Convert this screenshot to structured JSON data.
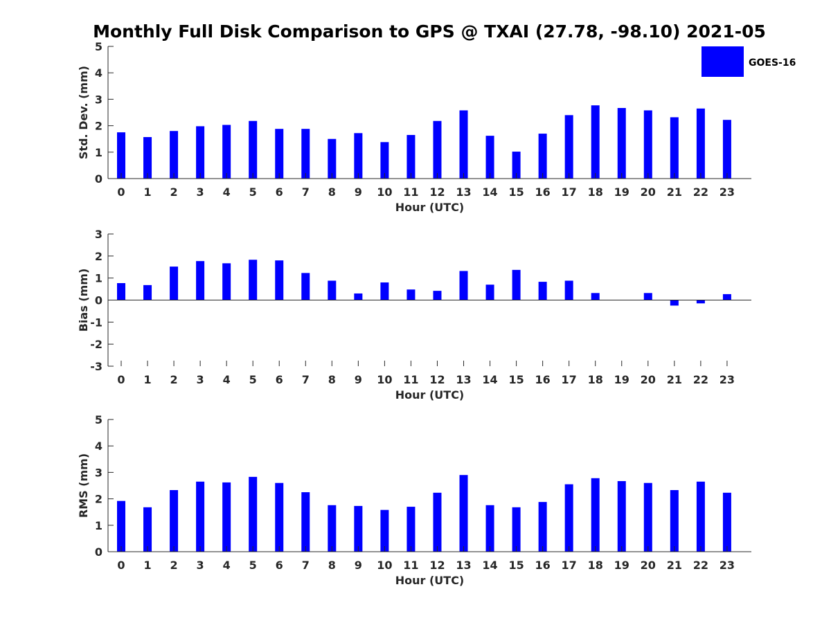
{
  "chart_data": {
    "title": "Monthly Full Disk Comparison to GPS @ TXAI (27.78, -98.10) 2021-05",
    "legend": {
      "label": "GOES-16",
      "color": "#0000ff",
      "placement": "top-right"
    },
    "panels": [
      {
        "type": "bar",
        "name": "std-dev",
        "ylabel": "Std. Dev. (mm)",
        "xlabel": "Hour (UTC)",
        "ylim": [
          0,
          5
        ],
        "yticks": [
          0,
          1,
          2,
          3,
          4,
          5
        ],
        "categories": [
          0,
          1,
          2,
          3,
          4,
          5,
          6,
          7,
          8,
          9,
          10,
          11,
          12,
          13,
          14,
          15,
          16,
          17,
          18,
          19,
          20,
          21,
          22,
          23
        ],
        "series": [
          {
            "name": "GOES-16",
            "values": [
              1.75,
              1.57,
              1.8,
              1.98,
              2.03,
              2.18,
              1.88,
              1.88,
              1.5,
              1.72,
              1.38,
              1.65,
              2.18,
              2.58,
              1.62,
              1.02,
              1.7,
              2.4,
              2.77,
              2.67,
              2.58,
              2.32,
              2.65,
              2.22
            ]
          }
        ]
      },
      {
        "type": "bar",
        "name": "bias",
        "ylabel": "Bias (mm)",
        "xlabel": "Hour (UTC)",
        "ylim": [
          -3,
          3
        ],
        "yticks": [
          -3,
          -2,
          -1,
          0,
          1,
          2,
          3
        ],
        "categories": [
          0,
          1,
          2,
          3,
          4,
          5,
          6,
          7,
          8,
          9,
          10,
          11,
          12,
          13,
          14,
          15,
          16,
          17,
          18,
          19,
          20,
          21,
          22,
          23
        ],
        "series": [
          {
            "name": "GOES-16",
            "values": [
              0.77,
              0.68,
              1.52,
              1.77,
              1.67,
              1.83,
              1.8,
              1.23,
              0.88,
              0.3,
              0.8,
              0.48,
              0.42,
              1.32,
              0.7,
              1.37,
              0.83,
              0.88,
              0.32,
              0,
              0.32,
              -0.25,
              -0.15,
              0.27
            ]
          }
        ]
      },
      {
        "type": "bar",
        "name": "rms",
        "ylabel": "RMS (mm)",
        "xlabel": "Hour (UTC)",
        "ylim": [
          0,
          5
        ],
        "yticks": [
          0,
          1,
          2,
          3,
          4,
          5
        ],
        "categories": [
          0,
          1,
          2,
          3,
          4,
          5,
          6,
          7,
          8,
          9,
          10,
          11,
          12,
          13,
          14,
          15,
          16,
          17,
          18,
          19,
          20,
          21,
          22,
          23
        ],
        "series": [
          {
            "name": "GOES-16",
            "values": [
              1.92,
              1.68,
              2.33,
              2.65,
              2.62,
              2.83,
              2.6,
              2.25,
              1.76,
              1.73,
              1.58,
              1.7,
              2.23,
              2.9,
              1.76,
              1.68,
              1.88,
              2.55,
              2.78,
              2.67,
              2.6,
              2.33,
              2.65,
              2.23
            ]
          }
        ]
      }
    ]
  }
}
